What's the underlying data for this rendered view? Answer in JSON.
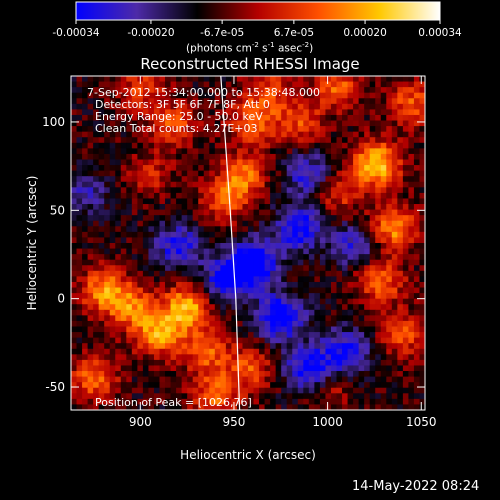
{
  "colorbar": {
    "tick_labels": [
      "-0.00034",
      "-0.00020",
      "-6.7e-05",
      "6.7e-05",
      "0.00020",
      "0.00034"
    ],
    "tick_values": [
      -0.00034,
      -0.0002,
      -6.7e-05,
      6.7e-05,
      0.0002,
      0.00034
    ],
    "range": [
      -0.00034,
      0.00034
    ],
    "unit_prefix": "(photons cm",
    "unit_exp1": "-2",
    "unit_mid": " s",
    "unit_exp2": "-1",
    "unit_mid2": " asec",
    "unit_exp3": "-2",
    "unit_suffix": ")"
  },
  "plot": {
    "title": "Reconstructed RHESSI Image",
    "info_lines": [
      "7-Sep-2012 15:34:00.000 to 15:38:48.000",
      "Detectors: 3F 5F 6F 7F 8F, Att 0",
      "Energy Range: 25.0 - 50.0 keV",
      "Clean    Total counts: 4.27E+03"
    ],
    "peak_label": "Position of Peak = [1026,76]"
  },
  "footer": {
    "timestamp": "14-May-2022 08:24"
  },
  "chart_data": {
    "type": "heatmap",
    "title": "Reconstructed RHESSI Image",
    "xlabel": "Heliocentric X (arcsec)",
    "ylabel": "Heliocentric Y (arcsec)",
    "xlim": [
      863,
      1052
    ],
    "ylim": [
      -63,
      126
    ],
    "x_ticks": [
      900,
      950,
      1000,
      1050
    ],
    "y_ticks": [
      -50,
      0,
      50,
      100
    ],
    "peak": [
      1026,
      76
    ],
    "limb_line": [
      [
        943,
        126
      ],
      [
        948,
        50
      ],
      [
        951,
        0
      ],
      [
        953,
        -63
      ]
    ],
    "colormap": [
      "#0000ff",
      "#4d2aa8",
      "#000000",
      "#b40000",
      "#ff5000",
      "#ffc800",
      "#ffffff"
    ],
    "blobs": [
      {
        "x": 900,
        "y": 118,
        "amp": 0.00016
      },
      {
        "x": 918,
        "y": 98,
        "amp": 0.00018
      },
      {
        "x": 968,
        "y": 118,
        "amp": 0.00015
      },
      {
        "x": 985,
        "y": 100,
        "amp": 0.00017
      },
      {
        "x": 1026,
        "y": 76,
        "amp": 0.00034
      },
      {
        "x": 1005,
        "y": 120,
        "amp": 0.0002
      },
      {
        "x": 1045,
        "y": 110,
        "amp": 0.0002
      },
      {
        "x": 1035,
        "y": 40,
        "amp": 0.00026
      },
      {
        "x": 1028,
        "y": 10,
        "amp": 0.00022
      },
      {
        "x": 1040,
        "y": -20,
        "amp": 0.00018
      },
      {
        "x": 1005,
        "y": 60,
        "amp": 0.00016
      },
      {
        "x": 1000,
        "y": -50,
        "amp": 0.00012
      },
      {
        "x": 955,
        "y": 70,
        "amp": 0.00022
      },
      {
        "x": 945,
        "y": 55,
        "amp": 0.00018
      },
      {
        "x": 880,
        "y": 5,
        "amp": 0.00024
      },
      {
        "x": 895,
        "y": -5,
        "amp": 0.00022
      },
      {
        "x": 910,
        "y": -20,
        "amp": 0.00026
      },
      {
        "x": 925,
        "y": -5,
        "amp": 0.0003
      },
      {
        "x": 935,
        "y": -30,
        "amp": 0.0002
      },
      {
        "x": 875,
        "y": -45,
        "amp": 0.00022
      },
      {
        "x": 940,
        "y": -55,
        "amp": 0.0002
      },
      {
        "x": 958,
        "y": -40,
        "amp": 0.00018
      },
      {
        "x": 905,
        "y": 70,
        "amp": 0.00012
      },
      {
        "x": 960,
        "y": 100,
        "amp": 0.0002
      },
      {
        "x": 920,
        "y": 30,
        "amp": -0.00022
      },
      {
        "x": 960,
        "y": 20,
        "amp": -0.00034
      },
      {
        "x": 975,
        "y": -10,
        "amp": -0.0003
      },
      {
        "x": 985,
        "y": 40,
        "amp": -0.00026
      },
      {
        "x": 990,
        "y": -40,
        "amp": -0.00028
      },
      {
        "x": 1010,
        "y": -30,
        "amp": -0.00024
      },
      {
        "x": 945,
        "y": 10,
        "amp": -0.00024
      },
      {
        "x": 990,
        "y": 70,
        "amp": -0.0002
      },
      {
        "x": 870,
        "y": 60,
        "amp": -0.00014
      },
      {
        "x": 1015,
        "y": 30,
        "amp": -0.00018
      }
    ]
  }
}
